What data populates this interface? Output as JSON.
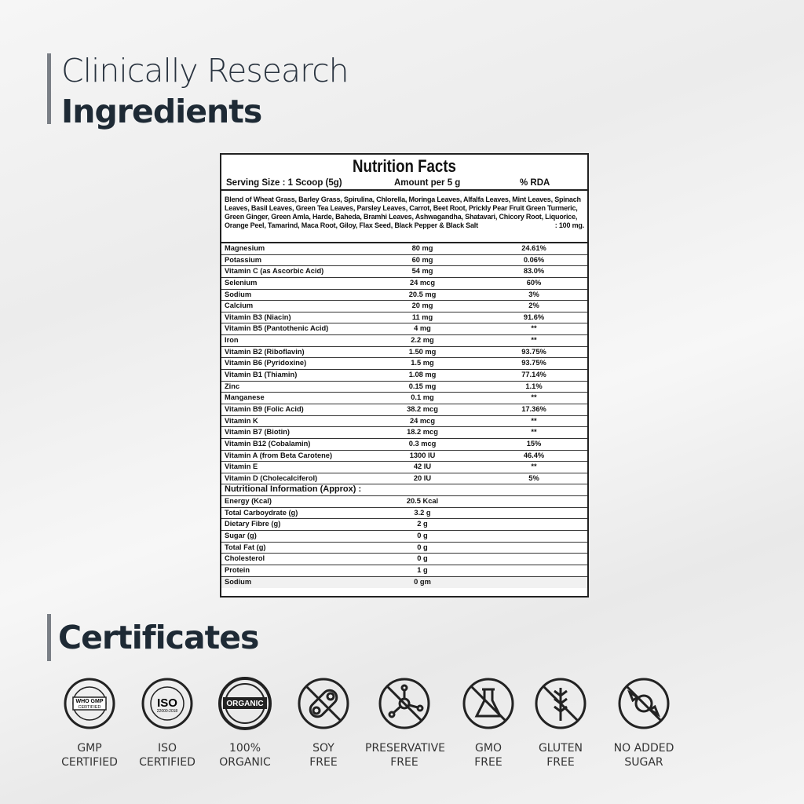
{
  "heading": {
    "line1": "Clinically Research",
    "line2": "Ingredients"
  },
  "nutrition": {
    "title": "Nutrition Facts",
    "serving": "Serving Size : 1 Scoop (5g)",
    "amount_header": "Amount per 5 g",
    "rda_header": "% RDA",
    "blend": "Blend of Wheat Grass, Barley Grass, Spirulina, Chlorella, Moringa Leaves, Alfalfa Leaves, Mint Leaves, Spinach Leaves, Basil Leaves, Green Tea Leaves, Parsley Leaves, Carrot, Beet Root, Prickly Pear Fruit Green Turmeric, Green Ginger, Green Amla, Harde, Baheda, Bramhi Leaves, Ashwagandha, Shatavari, Chicory Root, Liquorice, Orange Peel, Tamarind, Maca Root, Giloy, Flax Seed, Black Pepper & Black Salt",
    "blend_amount": ":    100 mg.",
    "rows": [
      [
        "Magnesium",
        "80 mg",
        "24.61%"
      ],
      [
        "Potassium",
        "60 mg",
        "0.06%"
      ],
      [
        "Vitamin C (as Ascorbic Acid)",
        "54 mg",
        "83.0%"
      ],
      [
        "Selenium",
        "24 mcg",
        "60%"
      ],
      [
        "Sodium",
        "20.5 mg",
        "3%"
      ],
      [
        "Calcium",
        "20 mg",
        "2%"
      ],
      [
        "Vitamin B3 (Niacin)",
        "11 mg",
        "91.6%"
      ],
      [
        "Vitamin B5 (Pantothenic Acid)",
        "4 mg",
        "**"
      ],
      [
        "Iron",
        "2.2 mg",
        "**"
      ],
      [
        "Vitamin B2 (Riboflavin)",
        "1.50 mg",
        "93.75%"
      ],
      [
        "Vitamin B6 (Pyridoxine)",
        "1.5 mg",
        "93.75%"
      ],
      [
        "Vitamin B1 (Thiamin)",
        "1.08 mg",
        "77.14%"
      ],
      [
        "Zinc",
        "0.15 mg",
        "1.1%"
      ],
      [
        "Manganese",
        "0.1 mg",
        "**"
      ],
      [
        "Vitamin B9 (Folic Acid)",
        "38.2 mcg",
        "17.36%"
      ],
      [
        "Vitamin K",
        "24 mcg",
        "**"
      ],
      [
        "Vitamin B7 (Biotin)",
        "18.2 mcg",
        "**"
      ],
      [
        "Vitamin B12 (Cobalamin)",
        "0.3 mcg",
        "15%"
      ],
      [
        "Vitamin A (from Beta Carotene)",
        "1300 IU",
        "46.4%"
      ],
      [
        "Vitamin E",
        "42 IU",
        "**"
      ],
      [
        "Vitamin D (Cholecalciferol)",
        "20 IU",
        "5%"
      ]
    ],
    "section": "Nutritional Information (Approx) :",
    "info_rows": [
      [
        "Energy (Kcal)",
        "20.5 Kcal"
      ],
      [
        "Total Carboydrate (g)",
        "3.2 g"
      ],
      [
        "Dietary Fibre (g)",
        "2 g"
      ],
      [
        "Sugar (g)",
        "0 g"
      ],
      [
        "Total Fat (g)",
        "0 g"
      ],
      [
        "Cholesterol",
        "0 g"
      ],
      [
        "Protein",
        "1 g"
      ],
      [
        "Sodium",
        "0 gm"
      ]
    ]
  },
  "certificates": {
    "title": "Certificates",
    "items": [
      {
        "icon": "gmp-seal-icon",
        "line1": "GMP",
        "line2": "CERTIFIED",
        "badge_text": "WHO GMP CERTIFIED"
      },
      {
        "icon": "iso-seal-icon",
        "line1": "ISO",
        "line2": "CERTIFIED",
        "badge_text": "ISO 22000:2018"
      },
      {
        "icon": "organic-seal-icon",
        "line1": "100%",
        "line2": "ORGANIC",
        "badge_text": "ORGANIC"
      },
      {
        "icon": "no-soy-icon",
        "line1": "SOY",
        "line2": "FREE"
      },
      {
        "icon": "no-preservative-icon",
        "line1": "PRESERVATIVE",
        "line2": "FREE"
      },
      {
        "icon": "no-gmo-icon",
        "line1": "GMO",
        "line2": "FREE"
      },
      {
        "icon": "no-gluten-icon",
        "line1": "GLUTEN",
        "line2": "FREE"
      },
      {
        "icon": "no-sugar-icon",
        "line1": "NO ADDED",
        "line2": "SUGAR"
      }
    ]
  }
}
